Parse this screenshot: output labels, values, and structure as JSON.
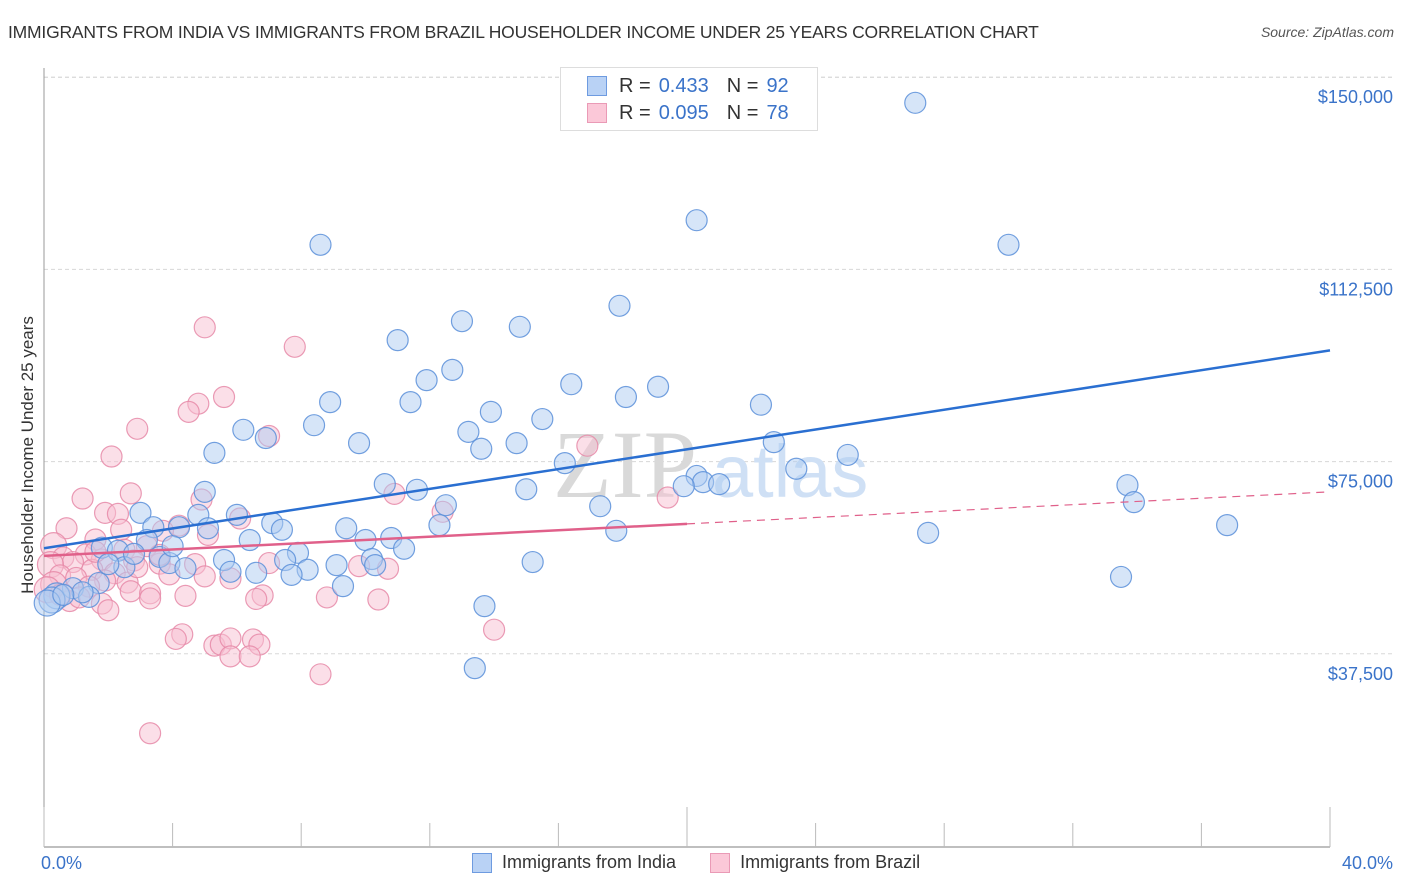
{
  "title": "IMMIGRANTS FROM INDIA VS IMMIGRANTS FROM BRAZIL HOUSEHOLDER INCOME UNDER 25 YEARS CORRELATION CHART",
  "source": "Source: ZipAtlas.com",
  "watermark": {
    "zip": "ZIP",
    "atlas": "atlas"
  },
  "legend": {
    "rows": [
      {
        "r_label": "R =",
        "r_value": "0.433",
        "n_label": "N =",
        "n_value": "92"
      },
      {
        "r_label": "R =",
        "r_value": "0.095",
        "n_label": "N =",
        "n_value": "78"
      }
    ]
  },
  "bottom_legend": [
    "Immigrants from India",
    "Immigrants from Brazil"
  ],
  "colors": {
    "india_fill": "#aecbf2",
    "india_stroke": "#5b8fd9",
    "india_line": "#2a6fd1",
    "brazil_fill": "#f8c0d2",
    "brazil_stroke": "#e68aa8",
    "brazil_line": "#e0608a",
    "tick_text": "#3a73c9"
  },
  "chart_data": {
    "type": "scatter",
    "title": "IMMIGRANTS FROM INDIA VS IMMIGRANTS FROM BRAZIL HOUSEHOLDER INCOME UNDER 25 YEARS CORRELATION CHART",
    "xlabel": "",
    "ylabel": "Householder Income Under 25 years",
    "xlim": [
      0,
      40
    ],
    "ylim": [
      0,
      153000
    ],
    "x_tick_labels": [
      "0.0%",
      "40.0%"
    ],
    "x_ticks_minor": [
      0,
      4,
      8,
      12,
      16,
      20,
      24,
      28,
      32,
      36,
      40
    ],
    "y_ticks": [
      37500,
      75000,
      112500,
      150000
    ],
    "y_tick_labels": [
      "$37,500",
      "$75,000",
      "$112,500",
      "$150,000"
    ],
    "grid": true,
    "legend_position": "top-center",
    "series": [
      {
        "name": "Immigrants from India",
        "R": 0.433,
        "N": 92,
        "trend": {
          "x": [
            0,
            40
          ],
          "y": [
            58100,
            96700
          ],
          "dashed_from": null
        },
        "points": [
          [
            27.1,
            145000
          ],
          [
            20.3,
            122100
          ],
          [
            30.0,
            117300
          ],
          [
            8.6,
            117300
          ],
          [
            17.9,
            105400
          ],
          [
            13.0,
            102400
          ],
          [
            14.8,
            101300
          ],
          [
            11.0,
            98700
          ],
          [
            12.7,
            92900
          ],
          [
            11.9,
            90900
          ],
          [
            16.4,
            90100
          ],
          [
            19.1,
            89600
          ],
          [
            18.1,
            87600
          ],
          [
            11.4,
            86600
          ],
          [
            8.9,
            86600
          ],
          [
            22.3,
            86100
          ],
          [
            13.9,
            84700
          ],
          [
            15.5,
            83300
          ],
          [
            8.4,
            82100
          ],
          [
            6.2,
            81200
          ],
          [
            13.2,
            80800
          ],
          [
            6.9,
            79600
          ],
          [
            9.8,
            78600
          ],
          [
            14.7,
            78600
          ],
          [
            22.7,
            78800
          ],
          [
            13.6,
            77500
          ],
          [
            5.3,
            76700
          ],
          [
            25.0,
            76300
          ],
          [
            16.2,
            74700
          ],
          [
            23.4,
            73600
          ],
          [
            20.3,
            72200
          ],
          [
            10.6,
            70600
          ],
          [
            20.5,
            71000
          ],
          [
            21.0,
            70600
          ],
          [
            19.9,
            70200
          ],
          [
            33.7,
            70400
          ],
          [
            11.6,
            69500
          ],
          [
            15.0,
            69600
          ],
          [
            5.0,
            69100
          ],
          [
            12.5,
            66500
          ],
          [
            33.9,
            67100
          ],
          [
            17.3,
            66300
          ],
          [
            3.0,
            65000
          ],
          [
            4.8,
            64600
          ],
          [
            6.0,
            64600
          ],
          [
            7.1,
            63000
          ],
          [
            12.3,
            62600
          ],
          [
            36.8,
            62600
          ],
          [
            4.2,
            62200
          ],
          [
            5.1,
            62000
          ],
          [
            3.4,
            62200
          ],
          [
            9.4,
            62000
          ],
          [
            7.4,
            61700
          ],
          [
            17.8,
            61500
          ],
          [
            27.5,
            61100
          ],
          [
            3.2,
            59700
          ],
          [
            6.4,
            59700
          ],
          [
            10.0,
            59700
          ],
          [
            10.8,
            60100
          ],
          [
            1.8,
            58200
          ],
          [
            7.9,
            57200
          ],
          [
            11.2,
            58000
          ],
          [
            2.3,
            57600
          ],
          [
            3.6,
            56400
          ],
          [
            5.6,
            55800
          ],
          [
            10.2,
            56000
          ],
          [
            7.5,
            55800
          ],
          [
            15.2,
            55400
          ],
          [
            3.9,
            55200
          ],
          [
            9.1,
            54800
          ],
          [
            10.3,
            54800
          ],
          [
            2.5,
            54400
          ],
          [
            4.4,
            54200
          ],
          [
            8.2,
            53900
          ],
          [
            5.8,
            53500
          ],
          [
            6.6,
            53300
          ],
          [
            7.7,
            52900
          ],
          [
            33.5,
            52500
          ],
          [
            9.3,
            50700
          ],
          [
            0.9,
            50300
          ],
          [
            1.7,
            51300
          ],
          [
            0.4,
            48800
          ],
          [
            1.4,
            48600
          ],
          [
            0.25,
            48000
          ],
          [
            0.1,
            47400
          ],
          [
            13.7,
            46800
          ],
          [
            13.4,
            34700
          ],
          [
            2.8,
            57000
          ],
          [
            1.2,
            49500
          ],
          [
            0.6,
            49000
          ],
          [
            2.0,
            55000
          ],
          [
            4.0,
            58500
          ]
        ]
      },
      {
        "name": "Immigrants from Brazil",
        "R": 0.095,
        "N": 78,
        "trend": {
          "x": [
            0,
            40
          ],
          "y": [
            56600,
            69100
          ],
          "dashed_from": 20.0
        },
        "points": [
          [
            5.0,
            101200
          ],
          [
            7.8,
            97400
          ],
          [
            5.6,
            87600
          ],
          [
            4.8,
            86300
          ],
          [
            4.5,
            84700
          ],
          [
            2.9,
            81400
          ],
          [
            7.0,
            80000
          ],
          [
            2.1,
            76000
          ],
          [
            16.9,
            78100
          ],
          [
            10.9,
            68700
          ],
          [
            19.4,
            68000
          ],
          [
            2.7,
            68800
          ],
          [
            1.2,
            67800
          ],
          [
            4.9,
            67600
          ],
          [
            12.4,
            65200
          ],
          [
            1.9,
            65000
          ],
          [
            2.3,
            64800
          ],
          [
            6.1,
            63900
          ],
          [
            0.7,
            62000
          ],
          [
            4.2,
            62500
          ],
          [
            2.4,
            61700
          ],
          [
            3.7,
            61500
          ],
          [
            5.1,
            60700
          ],
          [
            1.6,
            59800
          ],
          [
            0.3,
            58600
          ],
          [
            3.2,
            58500
          ],
          [
            2.5,
            57800
          ],
          [
            1.3,
            56900
          ],
          [
            0.6,
            56300
          ],
          [
            1.8,
            55900
          ],
          [
            2.8,
            55700
          ],
          [
            0.9,
            55400
          ],
          [
            3.6,
            55100
          ],
          [
            4.7,
            55000
          ],
          [
            0.2,
            54900
          ],
          [
            7.0,
            55200
          ],
          [
            9.8,
            54600
          ],
          [
            10.7,
            54100
          ],
          [
            1.5,
            53900
          ],
          [
            2.2,
            53200
          ],
          [
            3.9,
            53000
          ],
          [
            5.0,
            52600
          ],
          [
            5.8,
            52200
          ],
          [
            0.5,
            52800
          ],
          [
            1.0,
            52300
          ],
          [
            1.9,
            51800
          ],
          [
            2.6,
            51400
          ],
          [
            0.3,
            51000
          ],
          [
            1.4,
            50600
          ],
          [
            2.7,
            49700
          ],
          [
            3.3,
            49300
          ],
          [
            6.8,
            48900
          ],
          [
            4.4,
            48800
          ],
          [
            3.3,
            48300
          ],
          [
            6.6,
            48200
          ],
          [
            8.8,
            48500
          ],
          [
            10.4,
            48100
          ],
          [
            0.8,
            47800
          ],
          [
            1.8,
            47300
          ],
          [
            14.0,
            42200
          ],
          [
            4.3,
            41300
          ],
          [
            4.1,
            40400
          ],
          [
            5.3,
            39100
          ],
          [
            5.5,
            39300
          ],
          [
            5.8,
            40500
          ],
          [
            6.5,
            40300
          ],
          [
            6.7,
            39300
          ],
          [
            5.8,
            37000
          ],
          [
            6.4,
            37000
          ],
          [
            8.6,
            33500
          ],
          [
            3.3,
            22000
          ],
          [
            2.0,
            46000
          ],
          [
            0.1,
            50000
          ],
          [
            0.5,
            49000
          ],
          [
            1.1,
            48500
          ],
          [
            2.9,
            54400
          ],
          [
            3.6,
            56800
          ],
          [
            1.6,
            57400
          ]
        ]
      }
    ]
  }
}
